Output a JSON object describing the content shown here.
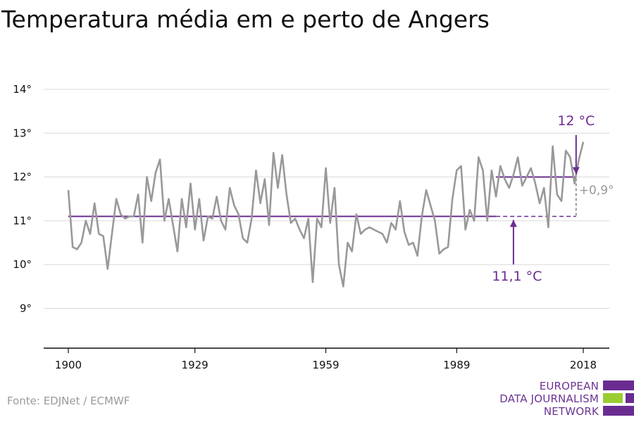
{
  "title": "Temperatura média em e perto de Angers",
  "source": "Fonte: EDJNet / ECMWF",
  "logo": {
    "lines": [
      "EUROPEAN",
      "DATA JOURNALISM",
      "NETWORK"
    ]
  },
  "colors": {
    "series": "#999999",
    "reference": "#6b2c91",
    "accent_green": "#9acd32",
    "grid": "#d9d9d9"
  },
  "chart_data": {
    "type": "line",
    "title": "Temperatura média em e perto de Angers",
    "xlabel": "",
    "ylabel": "",
    "xlim": [
      1900,
      2018
    ],
    "ylim": [
      8,
      14.3
    ],
    "x_ticks": [
      1900,
      1929,
      1959,
      1989,
      2018
    ],
    "y_ticks": [
      9,
      10,
      11,
      12,
      13,
      14
    ],
    "y_tick_labels": [
      "9°",
      "10°",
      "11°",
      "12°",
      "13°",
      "14°"
    ],
    "grid": true,
    "x": [
      1900,
      1901,
      1902,
      1903,
      1904,
      1905,
      1906,
      1907,
      1908,
      1909,
      1910,
      1911,
      1912,
      1913,
      1914,
      1915,
      1916,
      1917,
      1918,
      1919,
      1920,
      1921,
      1922,
      1923,
      1924,
      1925,
      1926,
      1927,
      1928,
      1929,
      1930,
      1931,
      1932,
      1933,
      1934,
      1935,
      1936,
      1937,
      1938,
      1939,
      1940,
      1941,
      1942,
      1943,
      1944,
      1945,
      1946,
      1947,
      1948,
      1949,
      1950,
      1951,
      1952,
      1953,
      1954,
      1955,
      1956,
      1957,
      1958,
      1959,
      1960,
      1961,
      1962,
      1963,
      1964,
      1965,
      1966,
      1967,
      1968,
      1969,
      1970,
      1971,
      1972,
      1973,
      1974,
      1975,
      1976,
      1977,
      1978,
      1979,
      1980,
      1981,
      1982,
      1983,
      1984,
      1985,
      1986,
      1987,
      1988,
      1989,
      1990,
      1991,
      1992,
      1993,
      1994,
      1995,
      1996,
      1997,
      1998,
      1999,
      2000,
      2001,
      2002,
      2003,
      2004,
      2005,
      2006,
      2007,
      2008,
      2009,
      2010,
      2011,
      2012,
      2013,
      2014,
      2015,
      2016,
      2017,
      2018
    ],
    "series": [
      {
        "values": [
          11.7,
          10.4,
          10.35,
          10.5,
          11.0,
          10.7,
          11.4,
          10.7,
          10.65,
          9.9,
          10.7,
          11.5,
          11.15,
          11.05,
          11.1,
          11.1,
          11.6,
          10.5,
          12.0,
          11.45,
          12.1,
          12.4,
          11.0,
          11.5,
          10.9,
          10.3,
          11.5,
          10.85,
          11.85,
          10.8,
          11.5,
          10.55,
          11.1,
          11.05,
          11.55,
          11.0,
          10.8,
          11.75,
          11.35,
          11.15,
          10.6,
          10.5,
          11.05,
          12.15,
          11.4,
          11.95,
          10.9,
          12.55,
          11.75,
          12.5,
          11.6,
          10.95,
          11.05,
          10.8,
          10.6,
          11.05,
          9.6,
          11.05,
          10.85,
          12.2,
          10.95,
          11.75,
          10.0,
          9.5,
          10.5,
          10.3,
          11.15,
          10.7,
          10.8,
          10.85,
          10.8,
          10.75,
          10.7,
          10.5,
          10.95,
          10.8,
          11.45,
          10.75,
          10.45,
          10.5,
          10.2,
          11.1,
          11.7,
          11.35,
          11.0,
          10.25,
          10.35,
          10.4,
          11.5,
          12.15,
          12.25,
          10.8,
          11.25,
          11.0,
          12.45,
          12.15,
          11.0,
          12.15,
          11.55,
          12.25,
          11.95,
          11.75,
          12.05,
          12.45,
          11.8,
          12.0,
          12.2,
          11.85,
          11.4,
          11.75,
          10.85,
          12.7,
          11.6,
          11.45,
          12.6,
          12.45,
          11.85,
          12.4,
          12.8
        ]
      }
    ],
    "annotations": [
      {
        "text": "12 °C",
        "value": 12.0,
        "x_range": [
          1998,
          2017
        ]
      },
      {
        "text": "11,1 °C",
        "value": 11.1,
        "x_range": [
          1900,
          2017
        ]
      },
      {
        "text": "+0,9°"
      }
    ]
  }
}
